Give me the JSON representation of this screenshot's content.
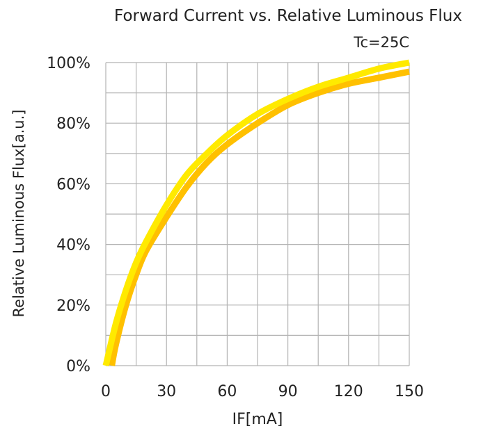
{
  "chart_data": {
    "type": "line",
    "title": "Forward Current vs. Relative Luminous Flux",
    "annotation": "Tc=25C",
    "xlabel": "IF[mA]",
    "ylabel": "Relative Luminous Flux[a.u.]",
    "xlim": [
      0,
      150
    ],
    "ylim": [
      0,
      100
    ],
    "xticks": [
      0,
      30,
      60,
      90,
      120,
      150
    ],
    "yticks": [
      0,
      20,
      40,
      60,
      80,
      100
    ],
    "ytick_labels": [
      "0%",
      "20%",
      "40%",
      "60%",
      "80%",
      "100%"
    ],
    "grid": true,
    "grid_step_x": 15,
    "grid_step_y": 10,
    "series": [
      {
        "color": "#FFEA00",
        "x": [
          0,
          5,
          10,
          15,
          20,
          30,
          40,
          50,
          60,
          75,
          90,
          105,
          120,
          135,
          150
        ],
        "y": [
          0,
          14,
          25,
          34,
          41,
          53,
          63,
          70,
          76,
          83,
          88,
          92,
          95,
          98,
          100
        ]
      },
      {
        "color": "#FFC000",
        "x": [
          3,
          5,
          10,
          15,
          20,
          30,
          40,
          50,
          60,
          75,
          90,
          105,
          120,
          135,
          150
        ],
        "y": [
          0,
          7,
          20,
          30,
          38,
          49,
          59,
          67,
          73,
          80,
          86,
          90,
          93,
          95,
          97
        ]
      }
    ]
  }
}
